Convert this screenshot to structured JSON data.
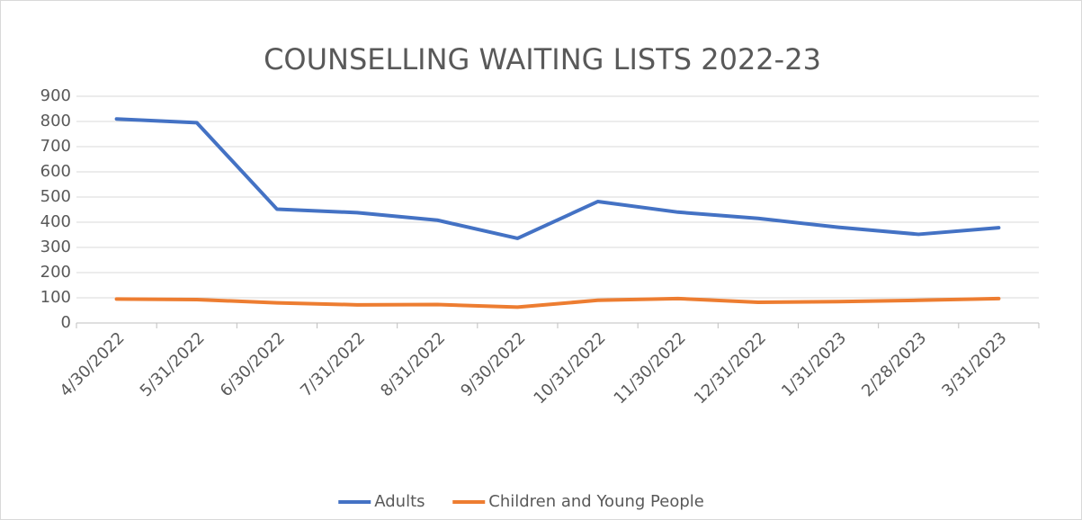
{
  "chart_data": {
    "type": "line",
    "title": "COUNSELLING WAITING LISTS 2022-23",
    "categories": [
      "4/30/2022",
      "5/31/2022",
      "6/30/2022",
      "7/31/2022",
      "8/31/2022",
      "9/30/2022",
      "10/31/2022",
      "11/30/2022",
      "12/31/2022",
      "1/31/2023",
      "2/28/2023",
      "3/31/2023"
    ],
    "series": [
      {
        "name": "Adults",
        "color": "#4472c4",
        "values": [
          810,
          795,
          452,
          438,
          408,
          336,
          482,
          440,
          415,
          380,
          352,
          378
        ]
      },
      {
        "name": "Children and Young People",
        "color": "#ed7d31",
        "values": [
          95,
          93,
          80,
          72,
          73,
          63,
          90,
          97,
          82,
          85,
          90,
          97
        ]
      }
    ],
    "ylim": [
      0,
      900
    ],
    "yticks": [
      0,
      100,
      200,
      300,
      400,
      500,
      600,
      700,
      800,
      900
    ],
    "grid": true,
    "legend": "bottom"
  }
}
